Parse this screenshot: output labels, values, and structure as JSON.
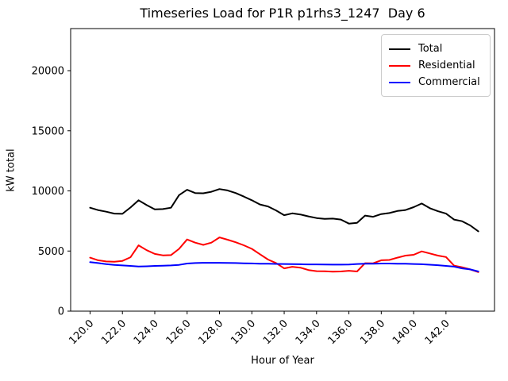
{
  "chart_data": {
    "type": "line",
    "title": "Timeseries Load for P1R p1rhs3_1247  Day 6",
    "xlabel": "Hour of Year",
    "ylabel": "kW total",
    "xlim": [
      118.8,
      145.0
    ],
    "ylim": [
      0,
      23500
    ],
    "grid": false,
    "legend_position": "upper right",
    "xticks": {
      "values": [
        120,
        122,
        124,
        126,
        128,
        130,
        132,
        134,
        136,
        138,
        140,
        142
      ],
      "labels": [
        "120.0",
        "122.0",
        "124.0",
        "126.0",
        "128.0",
        "130.0",
        "132.0",
        "134.0",
        "136.0",
        "138.0",
        "140.0",
        "142.0"
      ]
    },
    "yticks": {
      "values": [
        0,
        5000,
        10000,
        15000,
        20000
      ],
      "labels": [
        "0",
        "5000",
        "10000",
        "15000",
        "20000"
      ]
    },
    "x": [
      120,
      120.5,
      121,
      121.5,
      122,
      122.5,
      123,
      123.5,
      124,
      124.5,
      125,
      125.5,
      126,
      126.5,
      127,
      127.5,
      128,
      128.5,
      129,
      129.5,
      130,
      130.5,
      131,
      131.5,
      132,
      132.5,
      133,
      133.5,
      134,
      134.5,
      135,
      135.5,
      136,
      136.5,
      137,
      137.5,
      138,
      138.5,
      139,
      139.5,
      140,
      140.5,
      141,
      141.5,
      142,
      142.5,
      143,
      143.5,
      144
    ],
    "series": [
      {
        "name": "Total",
        "color": "#000000",
        "values": [
          8600,
          8400,
          8270,
          8110,
          8090,
          8620,
          9220,
          8820,
          8470,
          8490,
          8600,
          9650,
          10090,
          9820,
          9800,
          9930,
          10150,
          10040,
          9820,
          9530,
          9220,
          8870,
          8710,
          8380,
          7980,
          8130,
          8040,
          7880,
          7740,
          7680,
          7700,
          7620,
          7280,
          7350,
          7950,
          7850,
          8070,
          8160,
          8330,
          8410,
          8650,
          8950,
          8560,
          8310,
          8110,
          7620,
          7480,
          7130,
          6640
        ]
      },
      {
        "name": "Residential",
        "color": "#ff0000",
        "values": [
          4450,
          4230,
          4130,
          4110,
          4180,
          4480,
          5470,
          5070,
          4760,
          4640,
          4660,
          5180,
          5960,
          5700,
          5510,
          5700,
          6130,
          5940,
          5730,
          5480,
          5180,
          4730,
          4290,
          4000,
          3560,
          3690,
          3620,
          3420,
          3330,
          3320,
          3290,
          3300,
          3360,
          3300,
          3990,
          3980,
          4230,
          4260,
          4450,
          4620,
          4690,
          4970,
          4800,
          4620,
          4500,
          3790,
          3650,
          3470,
          3250
        ]
      },
      {
        "name": "Commercial",
        "color": "#0000ff",
        "values": [
          4070,
          4000,
          3910,
          3850,
          3800,
          3760,
          3710,
          3730,
          3760,
          3780,
          3800,
          3850,
          3960,
          4000,
          4020,
          4020,
          4020,
          4010,
          4000,
          3980,
          3970,
          3950,
          3940,
          3930,
          3920,
          3910,
          3900,
          3890,
          3890,
          3880,
          3870,
          3870,
          3880,
          3920,
          3940,
          3950,
          3960,
          3960,
          3950,
          3940,
          3920,
          3900,
          3860,
          3820,
          3760,
          3700,
          3560,
          3470,
          3300
        ]
      }
    ]
  }
}
